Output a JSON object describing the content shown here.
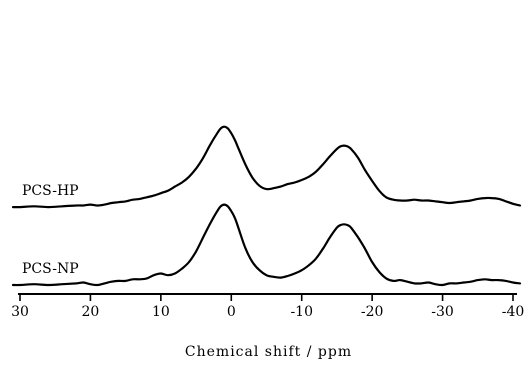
{
  "chart_data": {
    "type": "line",
    "title": "",
    "xlabel": "Chemical shift / ppm",
    "ylabel": "",
    "xlim": [
      30,
      -40
    ],
    "x_reversed": true,
    "y_axis_shown": false,
    "grid": false,
    "x_ticks": [
      30,
      20,
      10,
      0,
      -10,
      -20,
      -30,
      -40
    ],
    "x_tick_labels": [
      "30",
      "20",
      "10",
      "0",
      "-10",
      "-20",
      "-30",
      "-40"
    ],
    "series": [
      {
        "name": "PCS-HP",
        "offset": 0.95,
        "x": [
          31,
          30,
          28,
          26,
          24,
          22,
          21,
          20,
          19,
          18,
          17,
          16,
          15,
          14,
          13,
          12,
          11,
          10,
          9,
          8,
          7,
          6,
          5,
          4,
          3,
          2,
          1.5,
          1,
          0.5,
          0,
          -0.5,
          -1,
          -2,
          -3,
          -4,
          -5,
          -6,
          -7,
          -8,
          -9,
          -10,
          -11,
          -12,
          -13,
          -14,
          -15,
          -15.5,
          -16,
          -16.5,
          -17,
          -18,
          -19,
          -20,
          -21,
          -22,
          -23,
          -24,
          -25,
          -26,
          -27,
          -28,
          -29,
          -30,
          -31,
          -32,
          -33,
          -34,
          -35,
          -36,
          -37,
          -38,
          -39,
          -40,
          -41
        ],
        "values": [
          0.0,
          0.0,
          0.01,
          0.0,
          0.01,
          0.02,
          0.02,
          0.03,
          0.02,
          0.03,
          0.05,
          0.06,
          0.07,
          0.09,
          0.1,
          0.12,
          0.14,
          0.17,
          0.2,
          0.25,
          0.3,
          0.37,
          0.47,
          0.6,
          0.76,
          0.9,
          0.96,
          0.98,
          0.96,
          0.9,
          0.82,
          0.72,
          0.52,
          0.36,
          0.26,
          0.22,
          0.23,
          0.25,
          0.28,
          0.3,
          0.33,
          0.37,
          0.43,
          0.52,
          0.62,
          0.71,
          0.74,
          0.75,
          0.74,
          0.71,
          0.6,
          0.45,
          0.32,
          0.2,
          0.12,
          0.09,
          0.08,
          0.08,
          0.09,
          0.08,
          0.08,
          0.07,
          0.06,
          0.05,
          0.06,
          0.07,
          0.08,
          0.1,
          0.11,
          0.11,
          0.1,
          0.07,
          0.04,
          0.02
        ]
      },
      {
        "name": "PCS-NP",
        "offset": 0.0,
        "x": [
          31,
          30,
          28,
          26,
          24,
          22,
          21,
          20,
          19,
          18,
          17,
          16,
          15,
          14,
          13,
          12,
          11,
          10,
          9,
          8,
          7,
          6,
          5,
          4,
          3,
          2,
          1.5,
          1,
          0.5,
          0,
          -0.5,
          -1,
          -2,
          -3,
          -4,
          -5,
          -6,
          -7,
          -8,
          -9,
          -10,
          -11,
          -12,
          -13,
          -14,
          -15,
          -15.5,
          -16,
          -16.5,
          -17,
          -18,
          -19,
          -20,
          -21,
          -22,
          -23,
          -24,
          -25,
          -26,
          -27,
          -28,
          -29,
          -30,
          -31,
          -32,
          -33,
          -34,
          -35,
          -36,
          -37,
          -38,
          -39,
          -40,
          -41
        ],
        "values": [
          0.0,
          0.0,
          0.01,
          0.0,
          0.01,
          0.02,
          0.03,
          0.01,
          0.0,
          0.02,
          0.04,
          0.05,
          0.05,
          0.07,
          0.07,
          0.08,
          0.12,
          0.14,
          0.12,
          0.14,
          0.2,
          0.28,
          0.41,
          0.58,
          0.75,
          0.9,
          0.96,
          0.98,
          0.96,
          0.9,
          0.82,
          0.7,
          0.45,
          0.28,
          0.18,
          0.12,
          0.1,
          0.09,
          0.11,
          0.14,
          0.18,
          0.24,
          0.32,
          0.44,
          0.58,
          0.7,
          0.73,
          0.74,
          0.73,
          0.7,
          0.58,
          0.44,
          0.28,
          0.16,
          0.08,
          0.05,
          0.06,
          0.04,
          0.02,
          0.02,
          0.03,
          0.01,
          0.0,
          0.02,
          0.02,
          0.03,
          0.04,
          0.06,
          0.07,
          0.06,
          0.06,
          0.05,
          0.03,
          0.02
        ]
      }
    ]
  }
}
